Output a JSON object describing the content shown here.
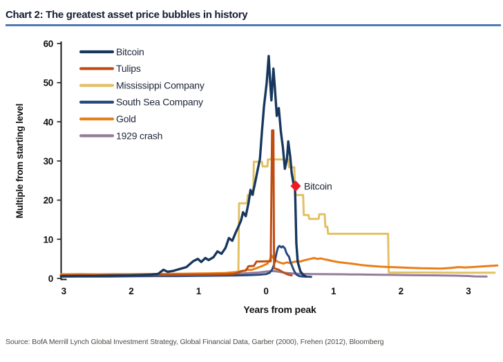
{
  "title": "Chart 2: The greatest asset price bubbles in history",
  "source": "Source:  BofA Merrill Lynch Global Investment Strategy, Global Financial Data, Garber (2000), Frehen (2012),  Bloomberg",
  "colors": {
    "title_underline": "#4d7ab0",
    "axis": "#1a1a1a",
    "tick_text": "#111111",
    "legend_text": "#1e2438",
    "annotation_marker": "#ed1c24"
  },
  "chart_data": {
    "type": "line",
    "title": "Chart 2: The greatest asset price bubbles in history",
    "xlabel": "Years from peak",
    "ylabel": "Multiple from starting level",
    "xlim": [
      -3.05,
      3.45
    ],
    "ylim": [
      0,
      60
    ],
    "y_ticks": [
      0,
      10,
      20,
      30,
      40,
      50,
      60
    ],
    "x_ticks": [
      {
        "value": -3,
        "label": "3"
      },
      {
        "value": -2,
        "label": "2"
      },
      {
        "value": -1,
        "label": "1"
      },
      {
        "value": 0,
        "label": "0"
      },
      {
        "value": 1,
        "label": "1"
      },
      {
        "value": 2,
        "label": "2"
      },
      {
        "value": 3,
        "label": "3"
      }
    ],
    "grid": false,
    "legend_position": "upper-left-inside",
    "annotation": {
      "label": "Bitcoin",
      "x": 0.44,
      "y": 23.6,
      "marker": "diamond",
      "color": "#ed1c24"
    },
    "series": [
      {
        "name": "Bitcoin",
        "color": "#17375e",
        "width": 3.4,
        "z": 6,
        "points": [
          [
            -3.04,
            0.55
          ],
          [
            -2.8,
            0.6
          ],
          [
            -2.55,
            0.6
          ],
          [
            -2.3,
            0.7
          ],
          [
            -2.05,
            0.75
          ],
          [
            -1.85,
            0.85
          ],
          [
            -1.7,
            0.95
          ],
          [
            -1.6,
            1.15
          ],
          [
            -1.52,
            2.2
          ],
          [
            -1.46,
            1.7
          ],
          [
            -1.38,
            1.9
          ],
          [
            -1.28,
            2.4
          ],
          [
            -1.18,
            2.9
          ],
          [
            -1.08,
            4.4
          ],
          [
            -1.01,
            5.0
          ],
          [
            -0.96,
            4.2
          ],
          [
            -0.9,
            5.2
          ],
          [
            -0.85,
            4.7
          ],
          [
            -0.78,
            5.4
          ],
          [
            -0.72,
            6.9
          ],
          [
            -0.66,
            6.3
          ],
          [
            -0.6,
            7.8
          ],
          [
            -0.55,
            10.3
          ],
          [
            -0.5,
            9.6
          ],
          [
            -0.45,
            11.7
          ],
          [
            -0.41,
            13.2
          ],
          [
            -0.37,
            14.8
          ],
          [
            -0.34,
            16.9
          ],
          [
            -0.3,
            15.9
          ],
          [
            -0.26,
            19.2
          ],
          [
            -0.23,
            22.6
          ],
          [
            -0.2,
            21.4
          ],
          [
            -0.16,
            24.6
          ],
          [
            -0.13,
            27.2
          ],
          [
            -0.09,
            30.5
          ],
          [
            -0.06,
            37.5
          ],
          [
            -0.03,
            44
          ],
          [
            0.01,
            50
          ],
          [
            0.04,
            56.8
          ],
          [
            0.06,
            50.5
          ],
          [
            0.08,
            45.5
          ],
          [
            0.11,
            53.6
          ],
          [
            0.13,
            49
          ],
          [
            0.16,
            41.5
          ],
          [
            0.19,
            43.5
          ],
          [
            0.22,
            37.5
          ],
          [
            0.25,
            33.5
          ],
          [
            0.28,
            28
          ],
          [
            0.31,
            30.5
          ],
          [
            0.33,
            35
          ],
          [
            0.36,
            31
          ],
          [
            0.38,
            27
          ],
          [
            0.41,
            24
          ],
          [
            0.43,
            23.3
          ],
          [
            0.44,
            16.5
          ],
          [
            0.45,
            9
          ],
          [
            0.47,
            4.2
          ],
          [
            0.51,
            1.8
          ],
          [
            0.55,
            0.9
          ],
          [
            0.59,
            0.5
          ]
        ]
      },
      {
        "name": "Tulips",
        "color": "#bf4d12",
        "width": 3,
        "z": 5,
        "points": [
          [
            -3.04,
            0.75
          ],
          [
            -2.6,
            0.8
          ],
          [
            -2.2,
            0.8
          ],
          [
            -1.8,
            0.85
          ],
          [
            -1.4,
            0.9
          ],
          [
            -1.0,
            0.95
          ],
          [
            -0.7,
            1.0
          ],
          [
            -0.5,
            1.1
          ],
          [
            -0.42,
            1.4
          ],
          [
            -0.36,
            1.9
          ],
          [
            -0.3,
            2.0
          ],
          [
            -0.26,
            3.1
          ],
          [
            -0.18,
            3.2
          ],
          [
            -0.14,
            4.3
          ],
          [
            0.07,
            4.4
          ],
          [
            0.09,
            37.8
          ],
          [
            0.11,
            37.8
          ],
          [
            0.12,
            2.6
          ],
          [
            0.19,
            2.2
          ],
          [
            0.26,
            1.5
          ],
          [
            0.32,
            1.0
          ],
          [
            0.38,
            0.75
          ]
        ]
      },
      {
        "name": "Mississippi Company",
        "color": "#e2c063",
        "width": 3,
        "z": 1,
        "points": [
          [
            -3.04,
            0.95
          ],
          [
            -2.5,
            0.95
          ],
          [
            -2.0,
            1.0
          ],
          [
            -1.5,
            1.0
          ],
          [
            -1.0,
            1.05
          ],
          [
            -0.7,
            1.1
          ],
          [
            -0.5,
            1.15
          ],
          [
            -0.41,
            1.3
          ],
          [
            -0.4,
            19.2
          ],
          [
            -0.28,
            19.2
          ],
          [
            -0.27,
            21.3
          ],
          [
            -0.19,
            21.3
          ],
          [
            -0.18,
            29.8
          ],
          [
            -0.06,
            29.8
          ],
          [
            -0.05,
            28.6
          ],
          [
            0.02,
            28.6
          ],
          [
            0.03,
            30.4
          ],
          [
            0.09,
            30.4
          ],
          [
            0.1,
            29.4
          ],
          [
            0.12,
            30.4
          ],
          [
            0.33,
            30.4
          ],
          [
            0.34,
            28.4
          ],
          [
            0.42,
            28.4
          ],
          [
            0.43,
            21.3
          ],
          [
            0.55,
            21.3
          ],
          [
            0.56,
            16.2
          ],
          [
            0.63,
            16.2
          ],
          [
            0.64,
            15.2
          ],
          [
            0.78,
            15.2
          ],
          [
            0.79,
            16.4
          ],
          [
            0.87,
            16.4
          ],
          [
            0.88,
            13.2
          ],
          [
            0.91,
            13.2
          ],
          [
            0.92,
            11.4
          ],
          [
            1.81,
            11.4
          ],
          [
            1.82,
            1.5
          ],
          [
            2.3,
            1.5
          ],
          [
            2.8,
            1.45
          ],
          [
            3.39,
            1.45
          ]
        ]
      },
      {
        "name": "South Sea Company",
        "color": "#28497e",
        "width": 3,
        "z": 4,
        "points": [
          [
            -3.04,
            0.45
          ],
          [
            -2.7,
            0.5
          ],
          [
            -2.35,
            0.5
          ],
          [
            -2.0,
            0.55
          ],
          [
            -1.65,
            0.6
          ],
          [
            -1.3,
            0.6
          ],
          [
            -1.0,
            0.65
          ],
          [
            -0.7,
            0.7
          ],
          [
            -0.45,
            0.75
          ],
          [
            -0.25,
            0.85
          ],
          [
            -0.1,
            0.95
          ],
          [
            0.0,
            1.1
          ],
          [
            0.05,
            1.4
          ],
          [
            0.09,
            2.2
          ],
          [
            0.12,
            3.6
          ],
          [
            0.14,
            5.2
          ],
          [
            0.16,
            6.8
          ],
          [
            0.18,
            8.0
          ],
          [
            0.2,
            8.3
          ],
          [
            0.23,
            7.9
          ],
          [
            0.25,
            8.2
          ],
          [
            0.28,
            7.7
          ],
          [
            0.3,
            6.6
          ],
          [
            0.32,
            6.0
          ],
          [
            0.34,
            5.6
          ],
          [
            0.36,
            4.4
          ],
          [
            0.39,
            3.0
          ],
          [
            0.42,
            1.8
          ],
          [
            0.45,
            1.0
          ],
          [
            0.49,
            0.6
          ],
          [
            0.55,
            0.5
          ],
          [
            0.61,
            0.45
          ],
          [
            0.67,
            0.4
          ]
        ]
      },
      {
        "name": "Gold",
        "color": "#ea7d16",
        "width": 3,
        "z": 3,
        "points": [
          [
            -3.04,
            1.05
          ],
          [
            -2.75,
            1.1
          ],
          [
            -2.5,
            1.05
          ],
          [
            -2.25,
            1.1
          ],
          [
            -2.0,
            1.1
          ],
          [
            -1.75,
            1.15
          ],
          [
            -1.5,
            1.15
          ],
          [
            -1.25,
            1.2
          ],
          [
            -1.0,
            1.25
          ],
          [
            -0.8,
            1.3
          ],
          [
            -0.6,
            1.4
          ],
          [
            -0.45,
            1.6
          ],
          [
            -0.35,
            1.85
          ],
          [
            -0.28,
            2.2
          ],
          [
            -0.22,
            2.15
          ],
          [
            -0.16,
            2.5
          ],
          [
            -0.1,
            2.9
          ],
          [
            -0.04,
            3.3
          ],
          [
            0.02,
            3.8
          ],
          [
            0.06,
            4.8
          ],
          [
            0.08,
            5.9
          ],
          [
            0.1,
            5.4
          ],
          [
            0.13,
            4.7
          ],
          [
            0.17,
            4.3
          ],
          [
            0.21,
            4.0
          ],
          [
            0.26,
            3.8
          ],
          [
            0.31,
            4.1
          ],
          [
            0.36,
            3.9
          ],
          [
            0.41,
            4.2
          ],
          [
            0.46,
            4.4
          ],
          [
            0.51,
            4.3
          ],
          [
            0.56,
            4.6
          ],
          [
            0.61,
            4.8
          ],
          [
            0.66,
            5.0
          ],
          [
            0.71,
            5.2
          ],
          [
            0.76,
            5.0
          ],
          [
            0.81,
            5.1
          ],
          [
            0.86,
            4.9
          ],
          [
            0.92,
            4.7
          ],
          [
            1.0,
            4.4
          ],
          [
            1.1,
            4.1
          ],
          [
            1.2,
            3.9
          ],
          [
            1.3,
            3.7
          ],
          [
            1.42,
            3.4
          ],
          [
            1.55,
            3.2
          ],
          [
            1.7,
            3.0
          ],
          [
            1.85,
            2.9
          ],
          [
            2.0,
            2.8
          ],
          [
            2.15,
            2.7
          ],
          [
            2.3,
            2.6
          ],
          [
            2.45,
            2.55
          ],
          [
            2.6,
            2.5
          ],
          [
            2.75,
            2.7
          ],
          [
            2.85,
            2.9
          ],
          [
            2.95,
            2.8
          ],
          [
            3.05,
            2.9
          ],
          [
            3.15,
            3.0
          ],
          [
            3.25,
            3.1
          ],
          [
            3.43,
            3.3
          ]
        ]
      },
      {
        "name": "1929 crash",
        "color": "#937b99",
        "width": 3,
        "z": 2,
        "points": [
          [
            -3.04,
            0.85
          ],
          [
            -2.6,
            0.9
          ],
          [
            -2.2,
            0.9
          ],
          [
            -1.8,
            0.95
          ],
          [
            -1.4,
            0.95
          ],
          [
            -1.0,
            1.0
          ],
          [
            -0.6,
            1.1
          ],
          [
            -0.4,
            1.2
          ],
          [
            -0.25,
            1.35
          ],
          [
            -0.12,
            1.5
          ],
          [
            0.0,
            1.75
          ],
          [
            0.08,
            1.9
          ],
          [
            0.15,
            1.8
          ],
          [
            0.22,
            1.6
          ],
          [
            0.3,
            1.4
          ],
          [
            0.4,
            1.25
          ],
          [
            0.55,
            1.15
          ],
          [
            0.7,
            1.1
          ],
          [
            0.9,
            1.08
          ],
          [
            1.1,
            1.05
          ],
          [
            1.35,
            1.0
          ],
          [
            1.6,
            0.95
          ],
          [
            1.85,
            0.9
          ],
          [
            2.1,
            0.85
          ],
          [
            2.35,
            0.8
          ],
          [
            2.6,
            0.75
          ],
          [
            2.8,
            0.7
          ],
          [
            3.0,
            0.62
          ],
          [
            3.1,
            0.52
          ],
          [
            3.27,
            0.5
          ]
        ]
      }
    ]
  }
}
